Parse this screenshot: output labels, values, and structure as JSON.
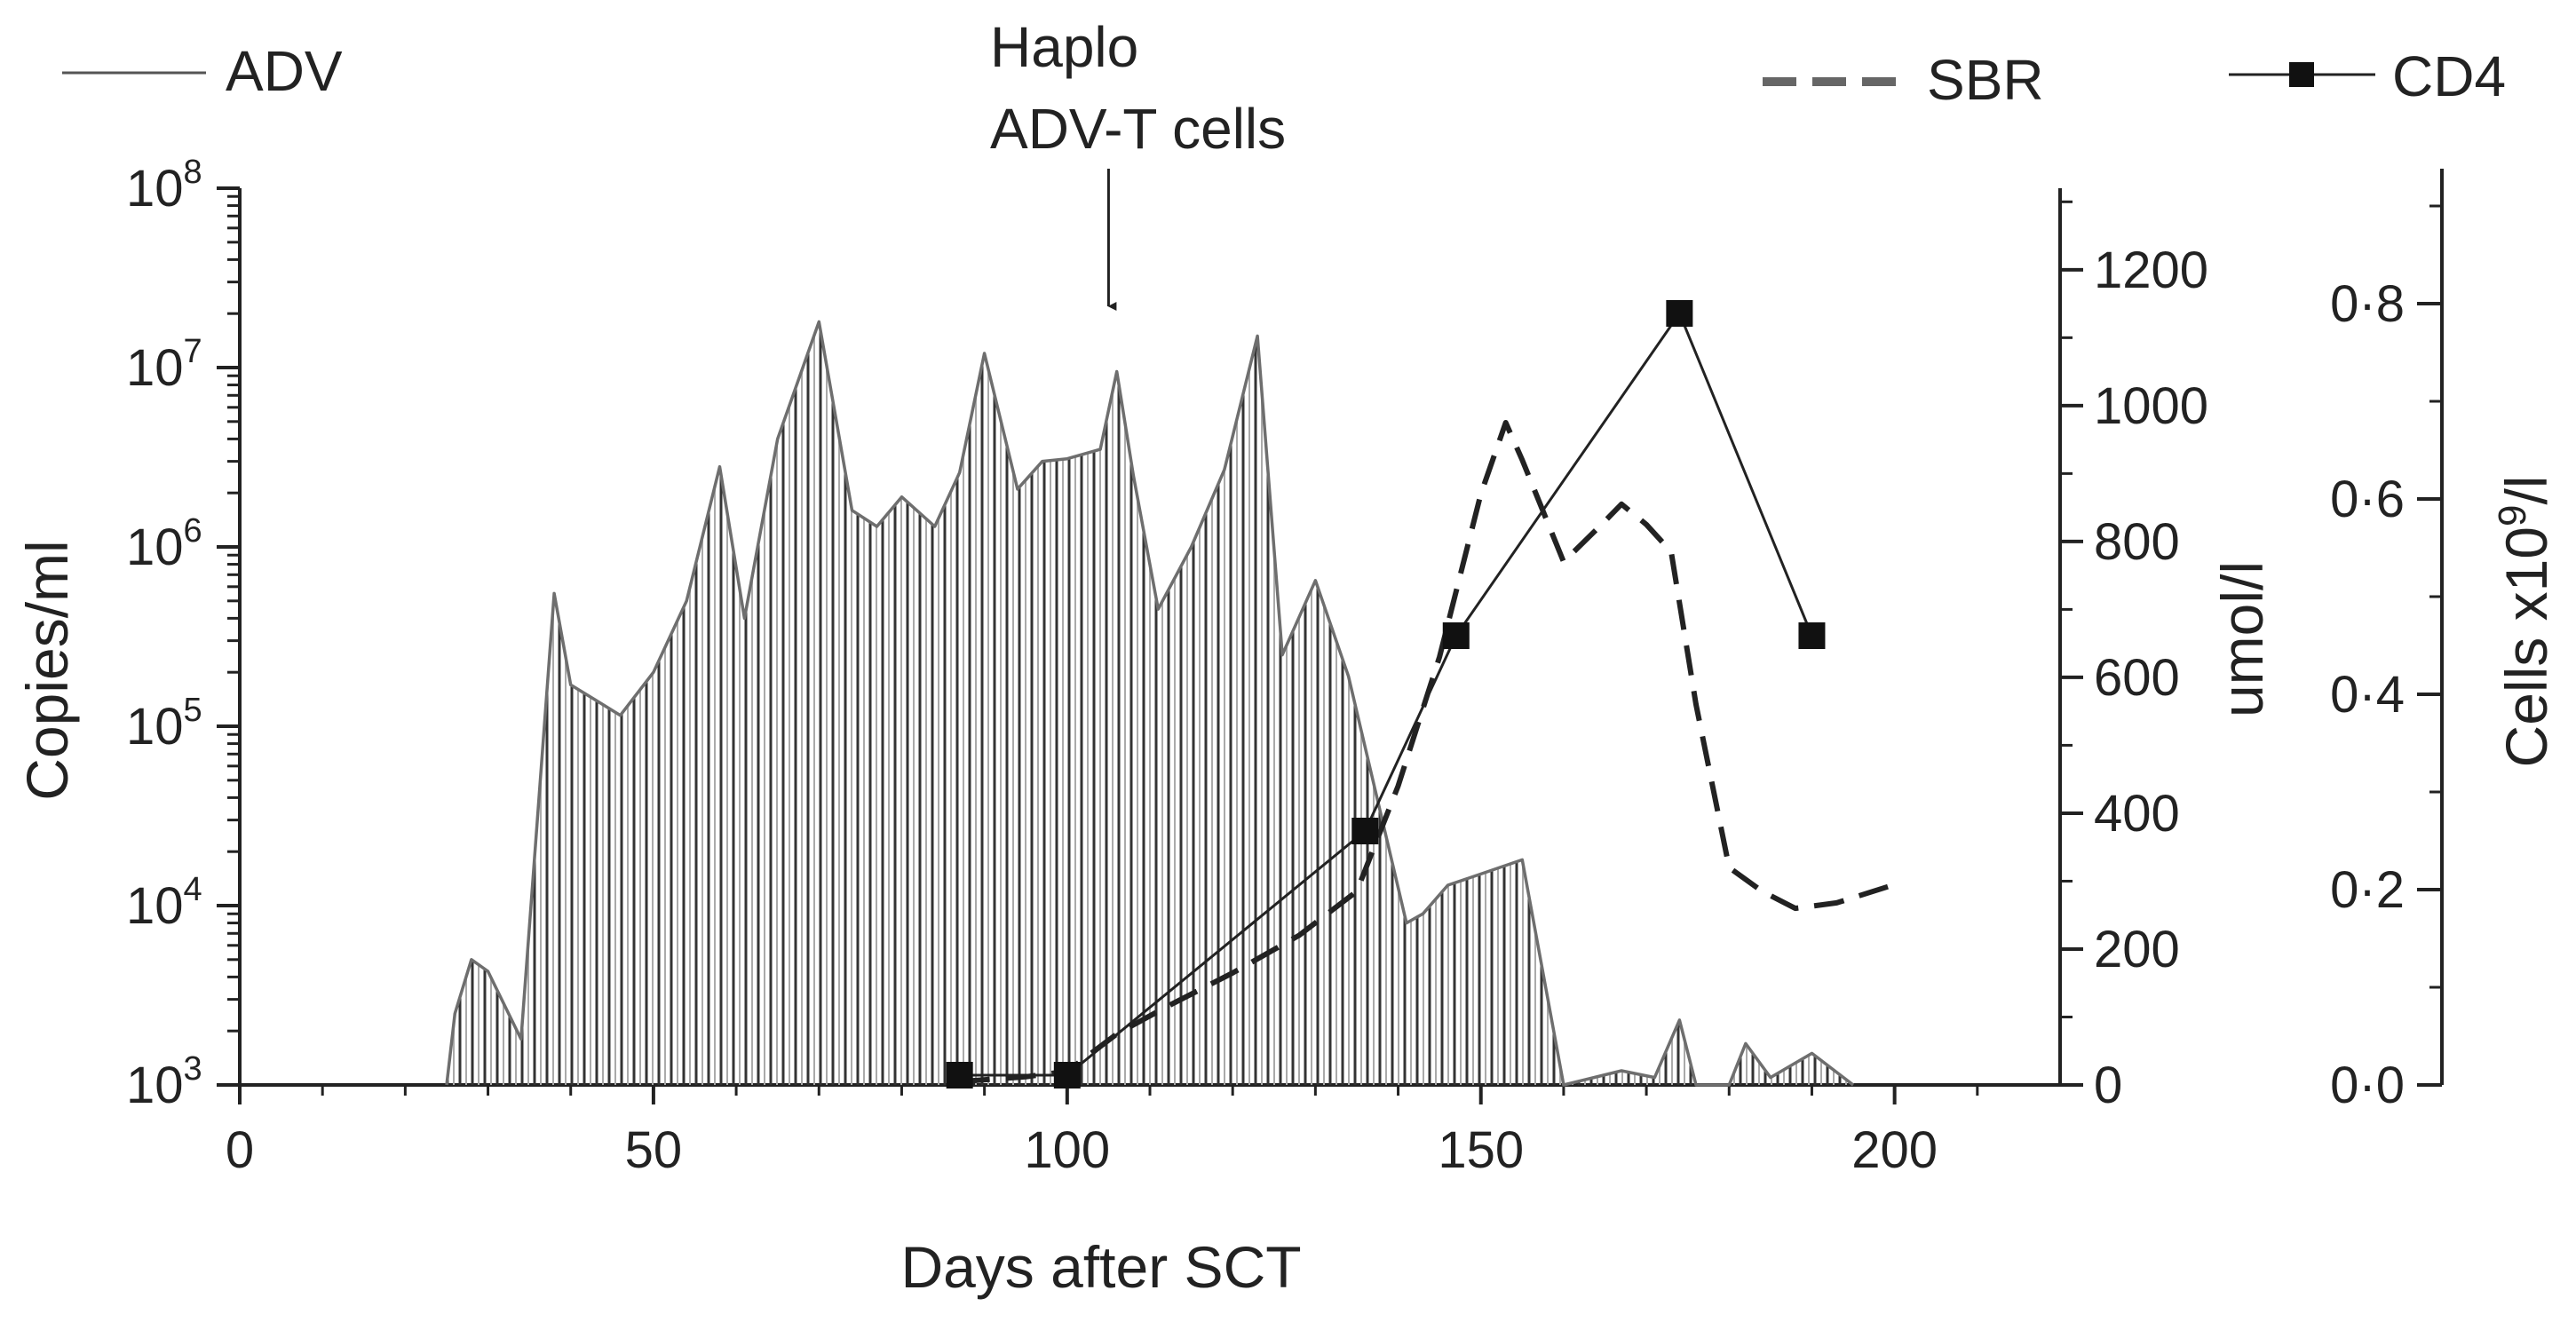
{
  "chart_data": {
    "type": "line",
    "title": "",
    "xlabel": "Days after SCT",
    "ylabel_left": "Copies/ml",
    "ylabel_mid": "umol/l",
    "ylabel_right_prefix": "Cells x10",
    "ylabel_right_exp": "9",
    "ylabel_right_suffix": "/l",
    "xlim": [
      0,
      220
    ],
    "x_ticks": [
      "0",
      "50",
      "100",
      "150",
      "200"
    ],
    "y_left_scale": "log10",
    "y_left_lim": [
      1000,
      100000000
    ],
    "y_left_tick_base": "10",
    "y_left_tick_exps": [
      "3",
      "4",
      "5",
      "6",
      "7",
      "8"
    ],
    "y_mid_lim": [
      0,
      1320
    ],
    "y_mid_ticks": [
      "0",
      "200",
      "400",
      "600",
      "800",
      "1000",
      "1200"
    ],
    "y_right_lim": [
      0,
      0.9
    ],
    "y_right_ticks": [
      "0·0",
      "0·2",
      "0·4",
      "0·6",
      "0·8"
    ],
    "annotation": {
      "line1": "Haplo",
      "line2": "ADV-T cells",
      "x": 105
    },
    "legend": {
      "adv": "ADV",
      "sbr": "SBR",
      "cd4": "CD4"
    },
    "series": [
      {
        "name": "ADV",
        "axis": "left",
        "style": "solid-gray-filled-hatched",
        "x": [
          25,
          26,
          28,
          30,
          34,
          38,
          40,
          43,
          46,
          50,
          54,
          58,
          61,
          65,
          70,
          74,
          77,
          80,
          84,
          87,
          90,
          94,
          97,
          100,
          104,
          106,
          108,
          111,
          115,
          119,
          123,
          126,
          130,
          134,
          141,
          143,
          146,
          150,
          155,
          160,
          167,
          171,
          174,
          176,
          180,
          182,
          185,
          190,
          195
        ],
        "y": [
          1000,
          2500,
          5000,
          4300,
          1800,
          550000,
          170000,
          140000,
          115000,
          200000,
          500000,
          2800000,
          400000,
          4000000,
          18000000,
          1600000,
          1300000,
          1900000,
          1300000,
          2600000,
          12000000,
          2100000,
          3000000,
          3100000,
          3500000,
          9500000,
          2500000,
          450000,
          1000000,
          2700000,
          15000000,
          250000,
          650000,
          190000,
          8000,
          9000,
          13000,
          15000,
          18000,
          1000,
          1200,
          1100,
          2300,
          1000,
          1000,
          1700,
          1100,
          1500,
          1000
        ]
      },
      {
        "name": "SBR",
        "axis": "mid",
        "style": "dashed",
        "x": [
          87,
          95,
          100,
          106,
          112,
          120,
          128,
          135,
          140,
          145,
          150,
          153,
          155,
          160,
          165,
          167,
          170,
          173,
          176,
          180,
          184,
          188,
          193,
          200
        ],
        "y": [
          5,
          12,
          20,
          75,
          115,
          165,
          220,
          285,
          440,
          630,
          870,
          975,
          920,
          770,
          830,
          855,
          825,
          785,
          560,
          320,
          285,
          260,
          268,
          295
        ]
      },
      {
        "name": "CD4",
        "axis": "right",
        "style": "solid-black-square-markers",
        "x": [
          87,
          100,
          136,
          147,
          174,
          190
        ],
        "y": [
          0.01,
          0.01,
          0.26,
          0.46,
          0.79,
          0.46
        ]
      }
    ]
  }
}
